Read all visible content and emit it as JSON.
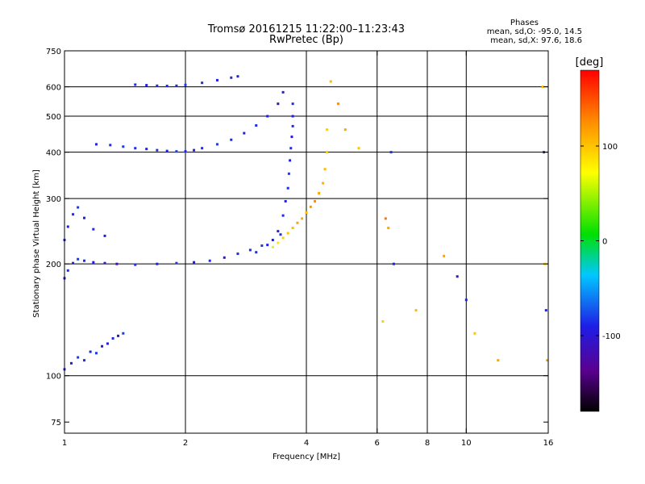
{
  "chart_data": {
    "type": "scatter",
    "title": "Tromsø 20161215 11:22:00–11:23:43",
    "subtitle": "RwPretec (Bp)",
    "stats": {
      "heading": "Phases",
      "line1": "mean, sd,O: -95.0, 14.5",
      "line2": "mean, sd,X:  97.6, 18.6"
    },
    "xlabel": "Frequency [MHz]",
    "ylabel": "Stationary phase Virtual Height [km]",
    "xscale": "log",
    "yscale": "log",
    "xlim": [
      1,
      16
    ],
    "ylim": [
      70,
      750
    ],
    "xticks": [
      {
        "v": 1,
        "label": "1"
      },
      {
        "v": 2,
        "label": "2"
      },
      {
        "v": 4,
        "label": "4"
      },
      {
        "v": 6,
        "label": "6"
      },
      {
        "v": 8,
        "label": "8"
      },
      {
        "v": 10,
        "label": "10"
      },
      {
        "v": 16,
        "label": "16"
      }
    ],
    "xgrid": [
      2,
      4,
      6,
      8,
      10
    ],
    "yticks": [
      {
        "v": 75,
        "label": "75"
      },
      {
        "v": 100,
        "label": "100"
      },
      {
        "v": 200,
        "label": "200"
      },
      {
        "v": 300,
        "label": "300"
      },
      {
        "v": 400,
        "label": "400"
      },
      {
        "v": 500,
        "label": "500"
      },
      {
        "v": 600,
        "label": "600"
      },
      {
        "v": 750,
        "label": "750"
      }
    ],
    "ygrid": [
      100,
      200,
      300,
      400,
      500,
      600
    ],
    "colorbar": {
      "label": "[deg]",
      "range": [
        -180,
        180
      ],
      "ticks": [
        {
          "v": 100,
          "label": "100"
        },
        {
          "v": 0,
          "label": "0"
        },
        {
          "v": -100,
          "label": "-100"
        }
      ]
    },
    "grid": true,
    "series": [
      {
        "x": [
          1.0,
          1.04,
          1.08,
          1.12,
          1.16,
          1.2,
          1.24,
          1.28,
          1.32,
          1.36,
          1.4
        ],
        "y": [
          104,
          108,
          112,
          110,
          116,
          115,
          120,
          122,
          126,
          128,
          130
        ],
        "phase": [
          -95,
          -100,
          -90,
          -95,
          -98,
          -92,
          -105,
          -100,
          -95,
          -110,
          -90
        ]
      },
      {
        "x": [
          1.0,
          1.02,
          1.05,
          1.08,
          1.12,
          1.18,
          1.26,
          1.35,
          1.5,
          1.7,
          1.9,
          2.1,
          2.3,
          2.5,
          2.7,
          2.9,
          3.1,
          3.3,
          3.45
        ],
        "y": [
          183,
          192,
          201,
          206,
          204,
          202,
          201,
          200,
          199,
          200,
          201,
          202,
          204,
          208,
          213,
          218,
          224,
          232,
          240
        ],
        "phase": [
          -100,
          -95,
          -100,
          -90,
          -95,
          -100,
          -110,
          -120,
          -95,
          -100,
          -90,
          -100,
          -95,
          -105,
          -95,
          -95,
          -90,
          -100,
          -95
        ]
      },
      {
        "x": [
          1.0,
          1.02,
          1.05,
          1.08,
          1.12,
          1.18,
          1.26
        ],
        "y": [
          232,
          252,
          272,
          284,
          266,
          248,
          238
        ],
        "phase": [
          -95,
          -100,
          -95,
          -90,
          -100,
          -95,
          -100
        ]
      },
      {
        "x": [
          1.2,
          1.3,
          1.4,
          1.5,
          1.6,
          1.7,
          1.8,
          1.9,
          2.0,
          2.1,
          2.2,
          2.4,
          2.6,
          2.8,
          3.0,
          3.2,
          3.4,
          3.5
        ],
        "y": [
          420,
          418,
          414,
          410,
          408,
          405,
          403,
          402,
          402,
          405,
          410,
          420,
          432,
          450,
          472,
          500,
          540,
          580
        ],
        "phase": [
          -100,
          -95,
          -90,
          -95,
          -100,
          -95,
          -100,
          -90,
          -95,
          -100,
          -95,
          -90,
          -95,
          -100,
          -95,
          -100,
          -120,
          -100
        ]
      },
      {
        "x": [
          1.5,
          1.6,
          1.7,
          1.8,
          1.9,
          2.0,
          2.2,
          2.4,
          2.6,
          2.7
        ],
        "y": [
          608,
          606,
          604,
          603,
          604,
          607,
          615,
          625,
          635,
          640
        ],
        "phase": [
          -95,
          -100,
          -95,
          -100,
          -95,
          -90,
          -95,
          -100,
          -95,
          -100
        ]
      },
      {
        "x": [
          3.0,
          3.2,
          3.4,
          3.5,
          3.55,
          3.6,
          3.62,
          3.64,
          3.66,
          3.68,
          3.7,
          3.7,
          3.7
        ],
        "y": [
          215,
          225,
          245,
          270,
          295,
          320,
          350,
          380,
          410,
          440,
          470,
          500,
          540
        ],
        "phase": [
          -95,
          -100,
          -100,
          -95,
          -100,
          -95,
          -90,
          -100,
          -95,
          -105,
          -95,
          -100,
          -95
        ]
      },
      {
        "x": [
          3.3,
          3.4,
          3.5,
          3.6,
          3.7,
          3.8,
          3.9,
          4.0,
          4.1,
          4.2,
          4.3,
          4.4,
          4.45,
          4.5,
          4.5
        ],
        "y": [
          222,
          228,
          235,
          242,
          250,
          258,
          265,
          275,
          285,
          295,
          310,
          330,
          360,
          400,
          460
        ],
        "phase": [
          60,
          80,
          90,
          95,
          100,
          110,
          105,
          100,
          115,
          120,
          110,
          105,
          100,
          95,
          90
        ]
      },
      {
        "x": [
          4.6,
          4.8,
          5.0,
          5.4,
          6.2,
          6.3,
          6.4,
          6.5,
          6.6,
          7.5,
          8.8,
          9.5,
          10.0,
          10.5,
          12.0,
          15.5,
          15.6,
          15.7,
          15.8,
          15.9
        ],
        "y": [
          620,
          540,
          460,
          410,
          140,
          265,
          250,
          400,
          200,
          150,
          210,
          185,
          160,
          130,
          110,
          600,
          400,
          200,
          150,
          110
        ],
        "phase": [
          100,
          120,
          110,
          95,
          90,
          130,
          110,
          -95,
          -100,
          100,
          110,
          -120,
          -100,
          95,
          110,
          100,
          -95,
          90,
          -100,
          110
        ]
      }
    ]
  }
}
